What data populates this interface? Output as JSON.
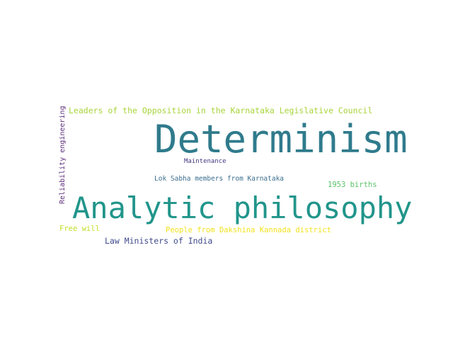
{
  "word_cloud": {
    "words": [
      {
        "text": "Determinism",
        "color": "#2f7b8c"
      },
      {
        "text": "Analytic philosophy",
        "color": "#21958b"
      },
      {
        "text": "Leaders of the Opposition in the Karnataka Legislative Council",
        "color": "#a8d43a"
      },
      {
        "text": "Reliability engineering",
        "color": "#5c2d7a"
      },
      {
        "text": "Maintenance",
        "color": "#453781"
      },
      {
        "text": "Lok Sabha members from Karnataka",
        "color": "#3b6e8f"
      },
      {
        "text": "1953 births",
        "color": "#5cc26a"
      },
      {
        "text": "Free will",
        "color": "#c2df23"
      },
      {
        "text": "People from Dakshina Kannada district",
        "color": "#f2e21c"
      },
      {
        "text": "Law Ministers of India",
        "color": "#3f4a8a"
      }
    ]
  }
}
